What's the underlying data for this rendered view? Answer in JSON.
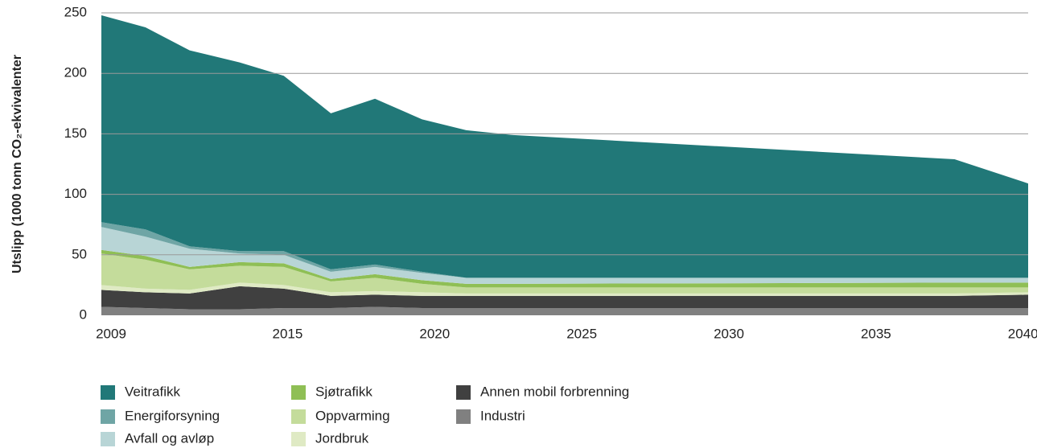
{
  "chart_data": {
    "type": "stacked_area",
    "y_label": "Utslipp (1000 tonn CO₂-ekvivalenter",
    "x": [
      2009,
      2010.5,
      2012,
      2013.7,
      2015.2,
      2016.8,
      2018.3,
      2019.9,
      2021.4,
      2023,
      2038,
      2040.5
    ],
    "xlim": [
      2009,
      2040.5
    ],
    "xticks": [
      2009,
      2015,
      2020,
      2025,
      2030,
      2035,
      2040
    ],
    "ylim": [
      0,
      250
    ],
    "yticks": [
      0,
      50,
      100,
      150,
      200,
      250
    ],
    "grid": true,
    "legend": "bottom",
    "series": [
      {
        "name": "Veitrafikk",
        "color": "#217878",
        "values": [
          171,
          167,
          162,
          156,
          145,
          129,
          137,
          126,
          122,
          118,
          98,
          78
        ]
      },
      {
        "name": "Energiforsyning",
        "color": "#6fa5a5",
        "values": [
          4,
          6,
          2,
          2,
          3,
          2,
          2,
          1,
          0,
          0,
          0,
          0
        ]
      },
      {
        "name": "Avfall og avløp",
        "color": "#b8d5d6",
        "values": [
          19,
          16,
          15,
          7,
          7,
          6,
          6,
          6,
          5,
          5,
          4,
          4
        ]
      },
      {
        "name": "Sjøtrafikk",
        "color": "#8fbf55",
        "values": [
          3,
          3,
          2,
          3,
          3,
          2,
          3,
          3,
          3,
          3,
          4,
          4
        ]
      },
      {
        "name": "Oppvarming",
        "color": "#c4dc9b",
        "values": [
          26,
          24,
          17,
          14,
          15,
          9,
          11,
          7,
          5,
          5,
          5,
          4
        ]
      },
      {
        "name": "Jordbruk",
        "color": "#dfeac4",
        "values": [
          4,
          3,
          3,
          3,
          3,
          3,
          3,
          3,
          2,
          2,
          2,
          2
        ]
      },
      {
        "name": "Annen mobil forbrenning",
        "color": "#404040",
        "values": [
          14,
          13,
          13,
          19,
          16,
          10,
          10,
          10,
          10,
          10,
          10,
          11
        ]
      },
      {
        "name": "Industri",
        "color": "#808080",
        "values": [
          7,
          6,
          5,
          5,
          6,
          6,
          7,
          6,
          6,
          6,
          6,
          6
        ]
      }
    ]
  }
}
